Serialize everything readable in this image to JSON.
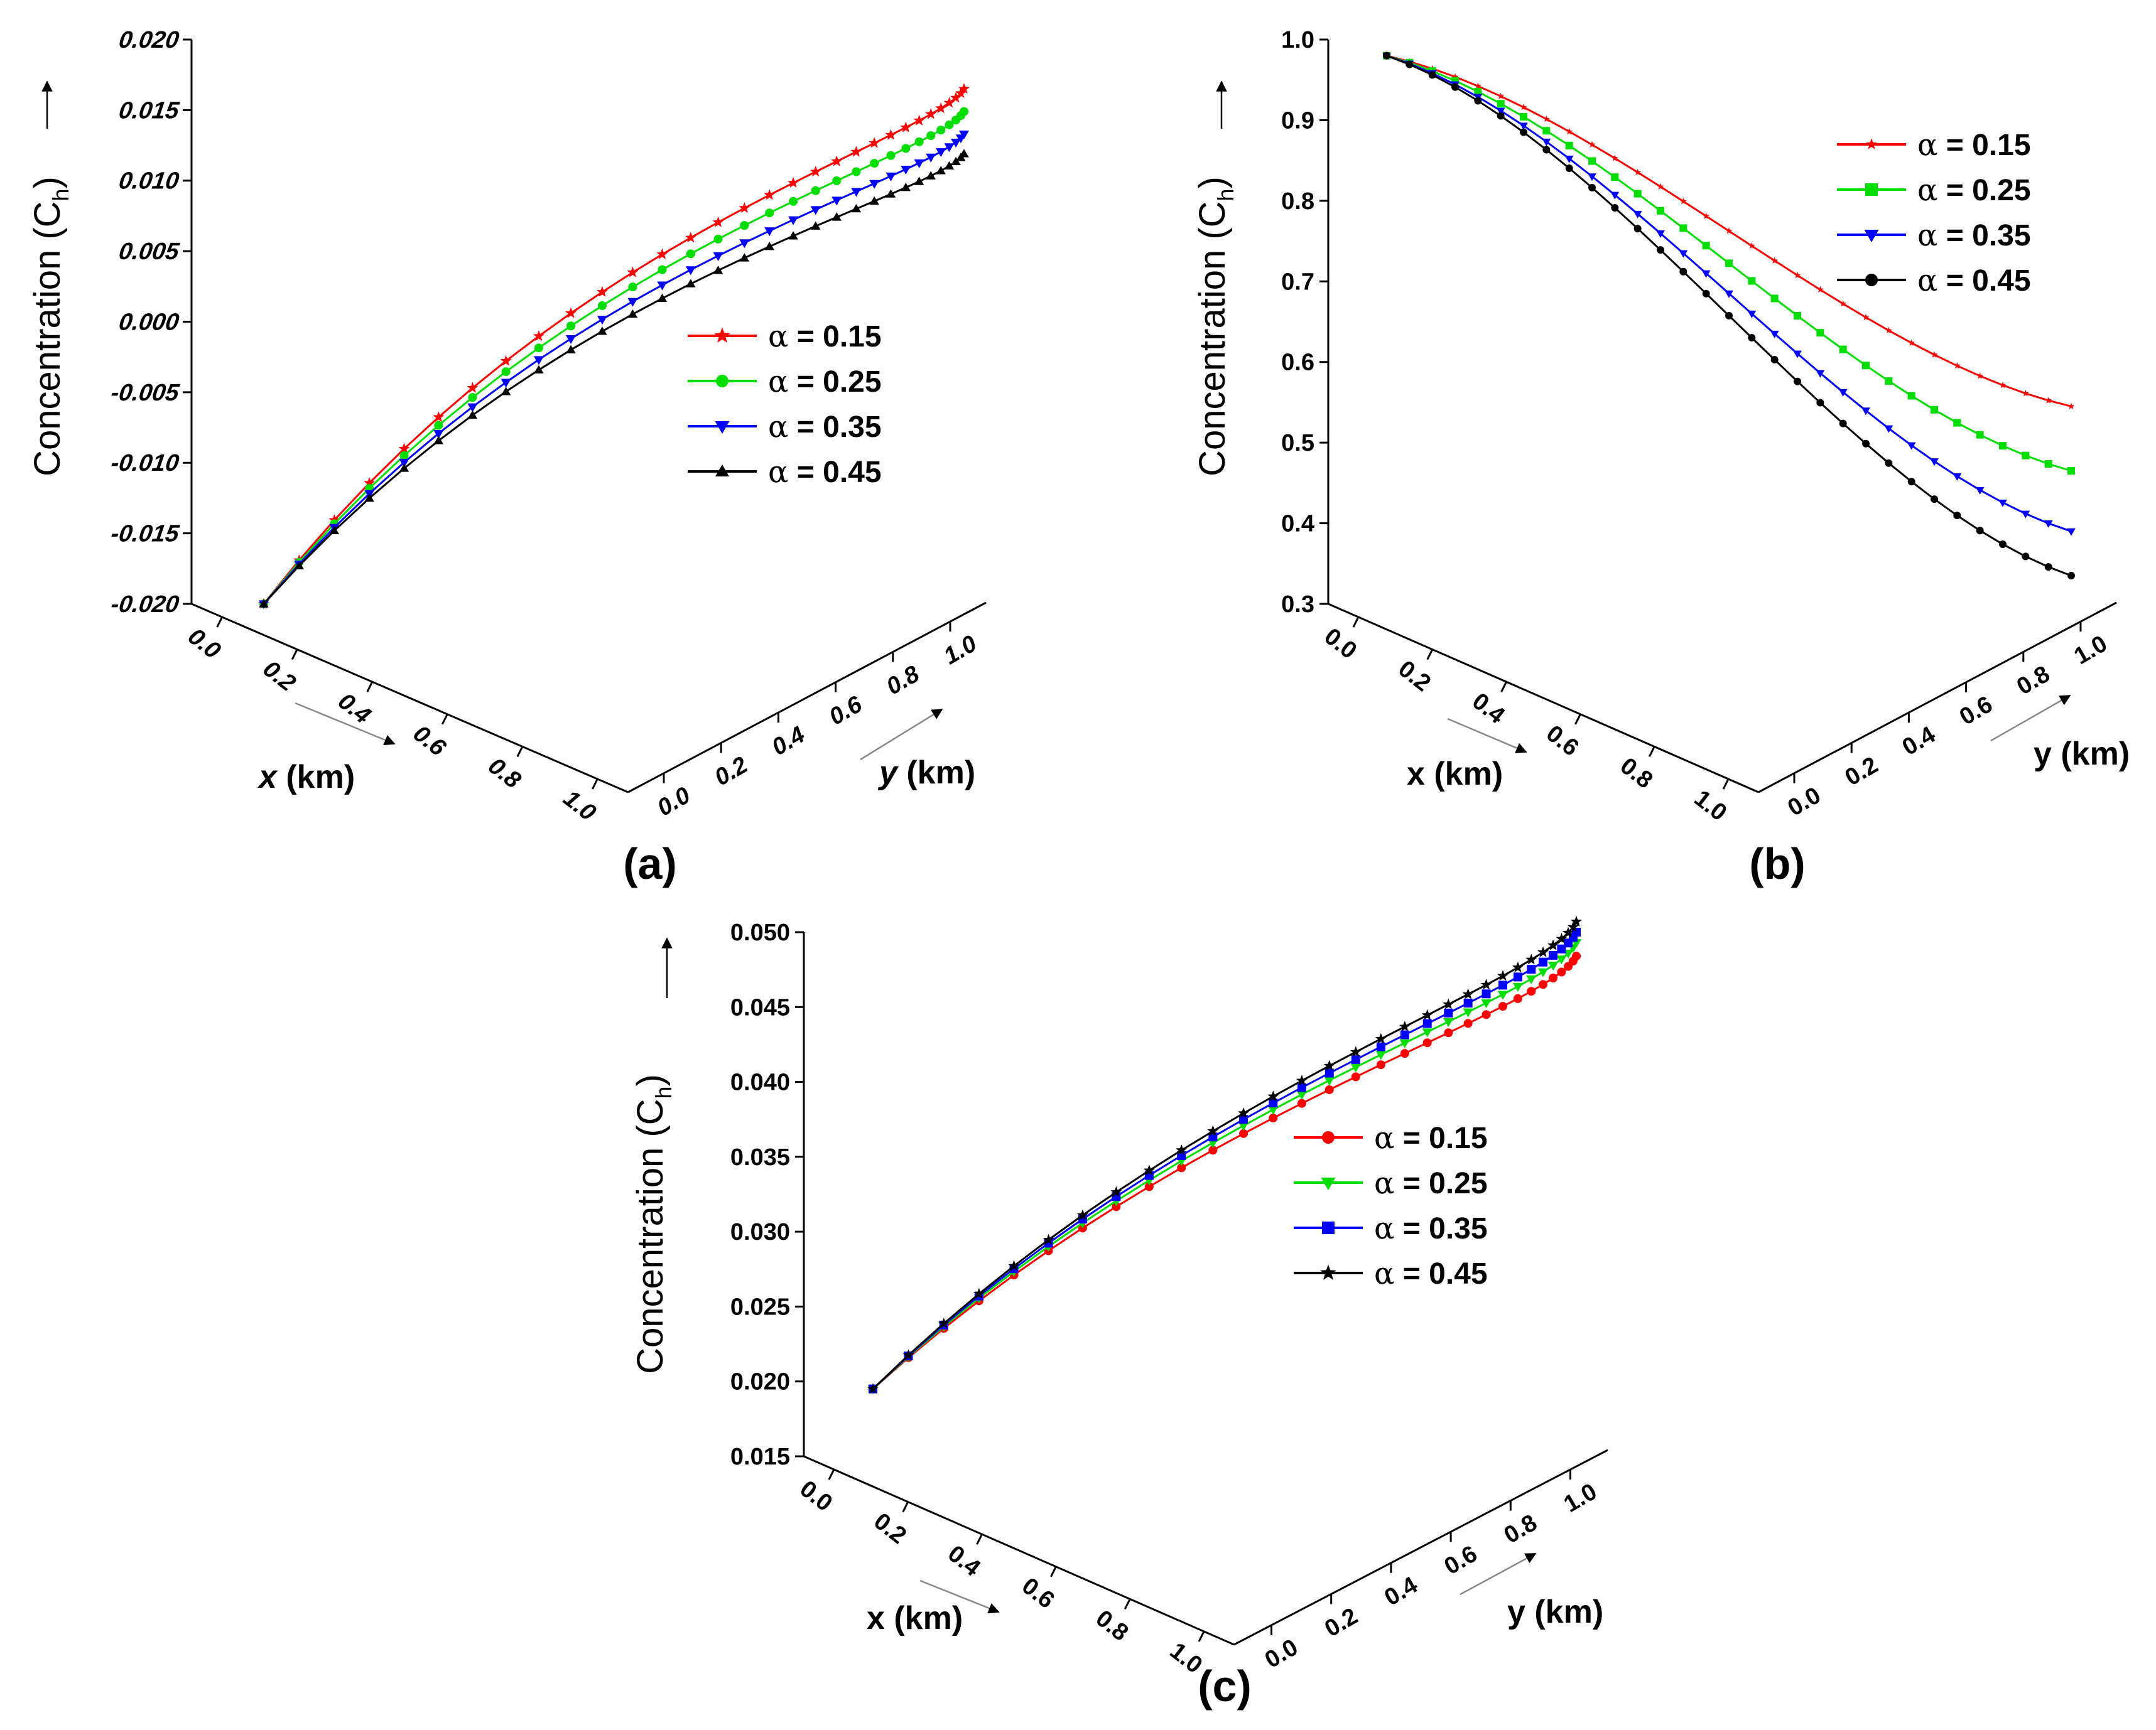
{
  "figure": {
    "panels": [
      "a",
      "b",
      "c"
    ]
  },
  "chart_data": [
    {
      "type": "line",
      "panel_label": "(a)",
      "ylabel_main": "Concentration (C",
      "ylabel_sub": "h",
      "ylabel_close": ")",
      "xlabel_var": "x",
      "xlabel_unit": " (km)",
      "ylabel2_var": "y",
      "ylabel2_unit": " (km)",
      "italic_axis_names": true,
      "italic_ticks": true,
      "z_ticks": [
        "0.020",
        "0.015",
        "0.010",
        "0.005",
        "0.000",
        "-0.005",
        "-0.010",
        "-0.015",
        "-0.020"
      ],
      "zlim": [
        -0.02,
        0.02
      ],
      "x_ticks": [
        "0.0",
        "0.2",
        "0.4",
        "0.6",
        "0.8",
        "1.0"
      ],
      "y_ticks": [
        "0.0",
        "0.2",
        "0.4",
        "0.6",
        "0.8",
        "1.0"
      ],
      "start": -0.02,
      "series": [
        {
          "name": "α = 0.15",
          "label": "α",
          "value_label": " = 0.15",
          "color": "#ff0000",
          "marker": "star",
          "end": 0.0165,
          "k": 2.4
        },
        {
          "name": "α = 0.25",
          "label": "α",
          "value_label": " = 0.25",
          "color": "#00dd00",
          "marker": "circle",
          "end": 0.0149,
          "k": 2.4
        },
        {
          "name": "α = 0.35",
          "label": "α",
          "value_label": " = 0.35",
          "color": "#0000ff",
          "marker": "tri-down",
          "end": 0.0133,
          "k": 2.4
        },
        {
          "name": "α = 0.45",
          "label": "α",
          "value_label": " = 0.45",
          "color": "#000000",
          "marker": "tri-up",
          "end": 0.0119,
          "k": 2.4
        }
      ]
    },
    {
      "type": "line",
      "panel_label": "(b)",
      "ylabel_main": "Concentration (C",
      "ylabel_sub": "h",
      "ylabel_close": ")",
      "xlabel_var": "x",
      "xlabel_unit": " (km)",
      "ylabel2_var": "y",
      "ylabel2_unit": " (km)",
      "italic_axis_names": false,
      "italic_ticks": false,
      "z_ticks": [
        "1.0",
        "0.9",
        "0.8",
        "0.7",
        "0.6",
        "0.5",
        "0.4",
        "0.3"
      ],
      "zlim": [
        0.3,
        1.0
      ],
      "x_ticks": [
        "0.0",
        "0.2",
        "0.4",
        "0.6",
        "0.8",
        "1.0"
      ],
      "y_ticks": [
        "0.0",
        "0.2",
        "0.4",
        "0.6",
        "0.8",
        "1.0"
      ],
      "start": 0.98,
      "series": [
        {
          "name": "α = 0.15",
          "label": "α",
          "value_label": " = 0.15",
          "color": "#ff0000",
          "marker": "small-star",
          "end": 0.545,
          "k": 0.15
        },
        {
          "name": "α = 0.25",
          "label": "α",
          "value_label": " = 0.25",
          "color": "#00dd00",
          "marker": "square",
          "end": 0.465,
          "k": 0.15
        },
        {
          "name": "α = 0.35",
          "label": "α",
          "value_label": " = 0.35",
          "color": "#0000ff",
          "marker": "tri-down",
          "end": 0.39,
          "k": 0.15
        },
        {
          "name": "α = 0.45",
          "label": "α",
          "value_label": " = 0.45",
          "color": "#000000",
          "marker": "circle",
          "end": 0.335,
          "k": 0.15
        }
      ]
    },
    {
      "type": "line",
      "panel_label": "(c)",
      "ylabel_main": "Concentration (C",
      "ylabel_sub": "h",
      "ylabel_close": ")",
      "xlabel_var": "x",
      "xlabel_unit": " (km)",
      "ylabel2_var": "y",
      "ylabel2_unit": " (km)",
      "italic_axis_names": false,
      "italic_ticks": false,
      "z_ticks": [
        "0.050",
        "0.045",
        "0.040",
        "0.035",
        "0.030",
        "0.025",
        "0.020",
        "0.015"
      ],
      "zlim": [
        0.015,
        0.05
      ],
      "x_ticks": [
        "0.0",
        "0.2",
        "0.4",
        "0.6",
        "0.8",
        "1.0"
      ],
      "y_ticks": [
        "0.0",
        "0.2",
        "0.4",
        "0.6",
        "0.8",
        "1.0"
      ],
      "start": 0.0195,
      "series": [
        {
          "name": "α = 0.15",
          "label": "α",
          "value_label": " = 0.15",
          "color": "#ff0000",
          "marker": "circle",
          "end": 0.0484,
          "k": 1.9
        },
        {
          "name": "α = 0.25",
          "label": "α",
          "value_label": " = 0.25",
          "color": "#00dd00",
          "marker": "tri-down",
          "end": 0.0493,
          "k": 1.9
        },
        {
          "name": "α = 0.35",
          "label": "α",
          "value_label": " = 0.35",
          "color": "#0000ff",
          "marker": "square",
          "end": 0.05,
          "k": 1.9
        },
        {
          "name": "α = 0.45",
          "label": "α",
          "value_label": " = 0.45",
          "color": "#000000",
          "marker": "star",
          "end": 0.0507,
          "k": 1.9
        }
      ]
    }
  ]
}
